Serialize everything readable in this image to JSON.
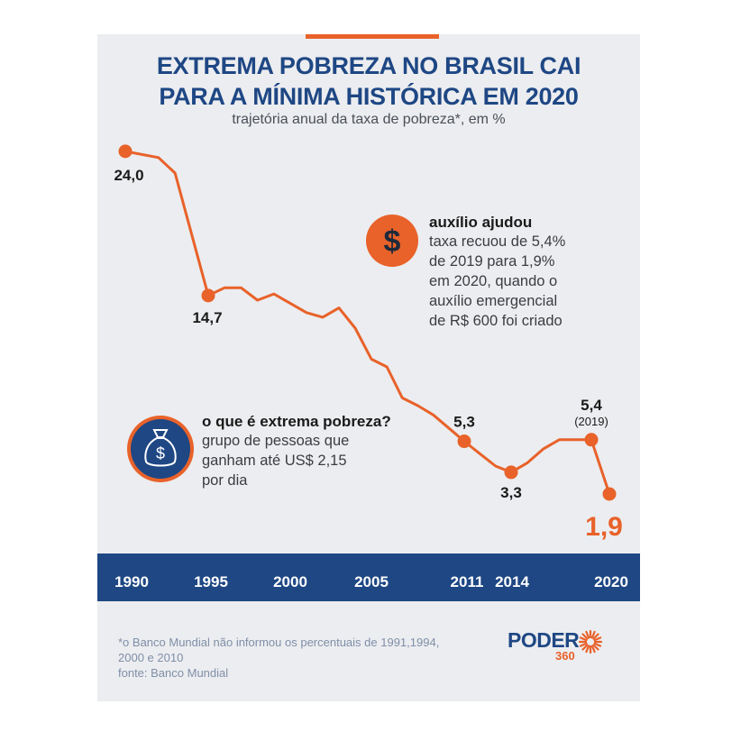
{
  "header": {
    "title_line1": "EXTREMA POBREZA NO BRASIL CAI",
    "title_line2": "PARA A MÍNIMA HISTÓRICA EM 2020",
    "subtitle": "trajetória anual da taxa de pobreza*, em %"
  },
  "colors": {
    "accent": "#e8622a",
    "brand": "#1e4784",
    "background": "#ecedf0"
  },
  "chart_data": {
    "type": "line",
    "title": "EXTREMA POBREZA NO BRASIL CAI PARA A MÍNIMA HISTÓRICA EM 2020",
    "subtitle": "trajetória anual da taxa de pobreza*, em %",
    "x_ticks": [
      "1990",
      "1995",
      "2000",
      "2005",
      "2011",
      "2014",
      "2020"
    ],
    "series": [
      {
        "points": [
          {
            "x": 1990,
            "y": 24.0
          },
          {
            "x": 1992,
            "y": 23.6
          },
          {
            "x": 1993,
            "y": 22.6
          },
          {
            "x": 1995,
            "y": 14.7
          },
          {
            "x": 1996,
            "y": 15.2
          },
          {
            "x": 1997,
            "y": 15.2
          },
          {
            "x": 1998,
            "y": 14.4
          },
          {
            "x": 1999,
            "y": 14.8
          },
          {
            "x": 2001,
            "y": 13.6
          },
          {
            "x": 2002,
            "y": 13.3
          },
          {
            "x": 2003,
            "y": 13.9
          },
          {
            "x": 2004,
            "y": 12.6
          },
          {
            "x": 2005,
            "y": 10.6
          },
          {
            "x": 2006,
            "y": 10.1
          },
          {
            "x": 2007,
            "y": 8.1
          },
          {
            "x": 2008,
            "y": 7.6
          },
          {
            "x": 2009,
            "y": 7.0
          },
          {
            "x": 2011,
            "y": 5.3
          },
          {
            "x": 2012,
            "y": 4.5
          },
          {
            "x": 2013,
            "y": 3.7
          },
          {
            "x": 2014,
            "y": 3.3
          },
          {
            "x": 2015,
            "y": 3.9
          },
          {
            "x": 2016,
            "y": 4.8
          },
          {
            "x": 2017,
            "y": 5.4
          },
          {
            "x": 2018,
            "y": 5.4
          },
          {
            "x": 2019,
            "y": 5.4
          },
          {
            "x": 2020,
            "y": 1.9
          }
        ]
      }
    ],
    "highlighted": [
      {
        "x": 1990,
        "y": 24.0,
        "label": "24,0",
        "sublabel": ""
      },
      {
        "x": 1995,
        "y": 14.7,
        "label": "14,7",
        "sublabel": ""
      },
      {
        "x": 2011,
        "y": 5.3,
        "label": "5,3",
        "sublabel": ""
      },
      {
        "x": 2014,
        "y": 3.3,
        "label": "3,3",
        "sublabel": ""
      },
      {
        "x": 2019,
        "y": 5.4,
        "label": "5,4",
        "sublabel": "(2019)"
      },
      {
        "x": 2020,
        "y": 1.9,
        "label": "1,9",
        "sublabel": ""
      }
    ]
  },
  "notes": {
    "aid": {
      "icon": "dollar-icon",
      "title": "auxílio ajudou",
      "lines": [
        "taxa recuou de 5,4%",
        "de 2019 para 1,9%",
        "em 2020, quando o",
        "auxílio emergencial",
        "de R$ 600 foi criado"
      ]
    },
    "definition": {
      "icon": "money-bag-icon",
      "title": "o que é extrema pobreza?",
      "lines": [
        "grupo de pessoas que",
        "ganham até US$ 2,15",
        "por dia"
      ]
    }
  },
  "footer": {
    "footnote_lines": [
      "*o Banco Mundial não informou os percentuais de 1991,1994,",
      "2000 e 2010",
      "fonte: Banco Mundial"
    ],
    "logo_word": "PODER",
    "logo_num": "360"
  }
}
